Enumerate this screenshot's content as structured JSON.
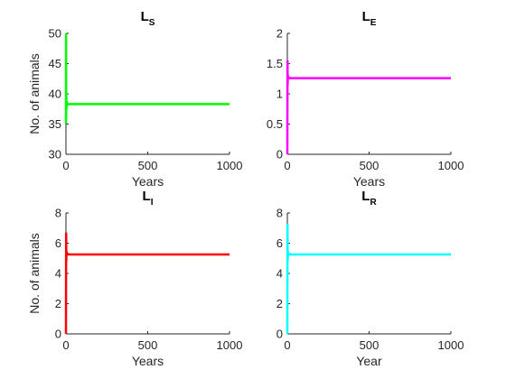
{
  "chart_data": [
    {
      "type": "line",
      "title": "L",
      "title_subscript": "S",
      "xlabel": "Years",
      "ylabel": "No. of animals",
      "xlim": [
        0,
        1000
      ],
      "ylim": [
        30,
        50
      ],
      "xticks": [
        0,
        500,
        1000
      ],
      "yticks": [
        30,
        35,
        40,
        45,
        50
      ],
      "ytick_labels": [
        "30",
        "35",
        "40",
        "45",
        "50"
      ],
      "color": "#00ff00",
      "series": [
        {
          "x": [
            0,
            0.5,
            1,
            2,
            3,
            5,
            10,
            20,
            50,
            1000
          ],
          "y": [
            35,
            50,
            36,
            40,
            37.5,
            38.8,
            38.2,
            38.3,
            38.3,
            38.3
          ]
        }
      ]
    },
    {
      "type": "line",
      "title": "L",
      "title_subscript": "E",
      "xlabel": "Years",
      "ylabel": "",
      "xlim": [
        0,
        1000
      ],
      "ylim": [
        0,
        2
      ],
      "xticks": [
        0,
        500,
        1000
      ],
      "yticks": [
        0,
        0.5,
        1,
        1.5,
        2
      ],
      "ytick_labels": [
        "0",
        "0.5",
        "1",
        "1.5",
        "2"
      ],
      "color": "#ff00ff",
      "series": [
        {
          "x": [
            0,
            1,
            2,
            3,
            5,
            10,
            20,
            50,
            1000
          ],
          "y": [
            0,
            1.55,
            1.15,
            1.32,
            1.24,
            1.27,
            1.26,
            1.26,
            1.26
          ]
        }
      ]
    },
    {
      "type": "line",
      "title": "L",
      "title_subscript": "I",
      "xlabel": "Years",
      "ylabel": "No. of animals",
      "xlim": [
        0,
        1000
      ],
      "ylim": [
        0,
        8
      ],
      "xticks": [
        0,
        500,
        1000
      ],
      "yticks": [
        0,
        2,
        4,
        6,
        8
      ],
      "ytick_labels": [
        "0",
        "2",
        "4",
        "6",
        "8"
      ],
      "color": "#ff0000",
      "series": [
        {
          "x": [
            0,
            1,
            2,
            3,
            5,
            10,
            20,
            50,
            1000
          ],
          "y": [
            0,
            6.7,
            4.8,
            5.5,
            5.2,
            5.3,
            5.25,
            5.25,
            5.25
          ]
        }
      ]
    },
    {
      "type": "line",
      "title": "L",
      "title_subscript": "R",
      "xlabel": "Year",
      "ylabel": "",
      "xlim": [
        0,
        1000
      ],
      "ylim": [
        0,
        8
      ],
      "xticks": [
        0,
        500,
        1000
      ],
      "yticks": [
        0,
        2,
        4,
        6,
        8
      ],
      "ytick_labels": [
        "0",
        "2",
        "4",
        "6",
        "8"
      ],
      "color": "#00ffff",
      "series": [
        {
          "x": [
            0,
            1,
            2,
            3,
            5,
            10,
            20,
            50,
            1000
          ],
          "y": [
            0,
            7.3,
            4.8,
            5.5,
            5.2,
            5.3,
            5.25,
            5.25,
            5.25
          ]
        }
      ]
    }
  ]
}
